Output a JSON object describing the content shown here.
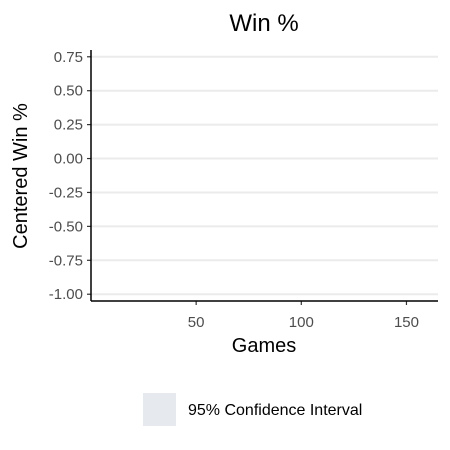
{
  "chart_data": {
    "type": "area",
    "title": "Win %",
    "xlabel": "Games",
    "ylabel": "Centered Win %",
    "xlim": [
      0,
      165
    ],
    "ylim": [
      -1.05,
      0.8
    ],
    "x_ticks": [
      50,
      100,
      150
    ],
    "x_tick_labels": [
      "50",
      "100",
      "150"
    ],
    "y_ticks": [
      0.75,
      0.5,
      0.25,
      0.0,
      -0.25,
      -0.5,
      -0.75,
      -1.0
    ],
    "y_tick_labels": [
      "0.75",
      "0.50",
      "0.25",
      "0.00",
      "-0.25",
      "-0.50",
      "-0.75",
      "-1.00"
    ],
    "series": [],
    "grid": "horizontal",
    "legend": {
      "placement": "bottom",
      "entries": [
        {
          "label": "95% Confidence Interval",
          "color": "#e6e9ed"
        }
      ]
    },
    "colors": {
      "grid": "#ebebeb",
      "axis": "#000000",
      "tick_text": "#4d4d4d"
    }
  }
}
